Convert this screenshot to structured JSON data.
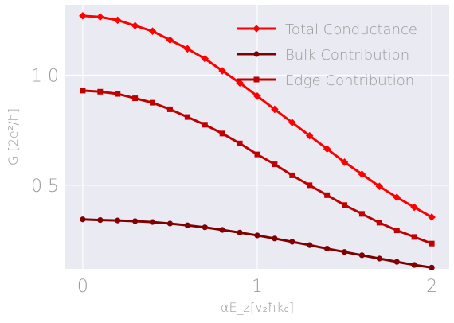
{
  "chart_data": {
    "type": "line",
    "title": "",
    "xlabel": "αE_z[v₂ħk₀]",
    "ylabel": "G [2e²/h]",
    "xlim": [
      -0.1,
      2.1
    ],
    "ylim": [
      0.12,
      1.32
    ],
    "xticks": [
      "0",
      "1",
      "2"
    ],
    "yticks": [
      "0.5",
      "1.0"
    ],
    "grid": true,
    "legend_position": "top-right",
    "x": [
      0,
      0.1,
      0.2,
      0.3,
      0.4,
      0.5,
      0.6,
      0.7,
      0.8,
      0.9,
      1.0,
      1.1,
      1.2,
      1.3,
      1.4,
      1.5,
      1.6,
      1.7,
      1.8,
      1.9,
      2.0
    ],
    "series": [
      {
        "name": "Total Conductance",
        "color": "#ff0000",
        "marker": "diamond",
        "values": [
          1.27,
          1.265,
          1.25,
          1.225,
          1.2,
          1.16,
          1.12,
          1.075,
          1.02,
          0.965,
          0.905,
          0.845,
          0.785,
          0.725,
          0.665,
          0.605,
          0.55,
          0.495,
          0.445,
          0.4,
          0.355
        ]
      },
      {
        "name": "Bulk Contribution",
        "color": "#800000",
        "marker": "circle",
        "values": [
          0.345,
          0.342,
          0.34,
          0.337,
          0.333,
          0.326,
          0.318,
          0.309,
          0.297,
          0.285,
          0.272,
          0.258,
          0.243,
          0.228,
          0.212,
          0.197,
          0.182,
          0.167,
          0.152,
          0.138,
          0.126
        ]
      },
      {
        "name": "Edge Contribution",
        "color": "#c00000",
        "marker": "square",
        "values": [
          0.93,
          0.925,
          0.915,
          0.895,
          0.875,
          0.845,
          0.81,
          0.775,
          0.735,
          0.69,
          0.64,
          0.595,
          0.545,
          0.5,
          0.455,
          0.41,
          0.37,
          0.33,
          0.295,
          0.265,
          0.235
        ]
      }
    ]
  }
}
